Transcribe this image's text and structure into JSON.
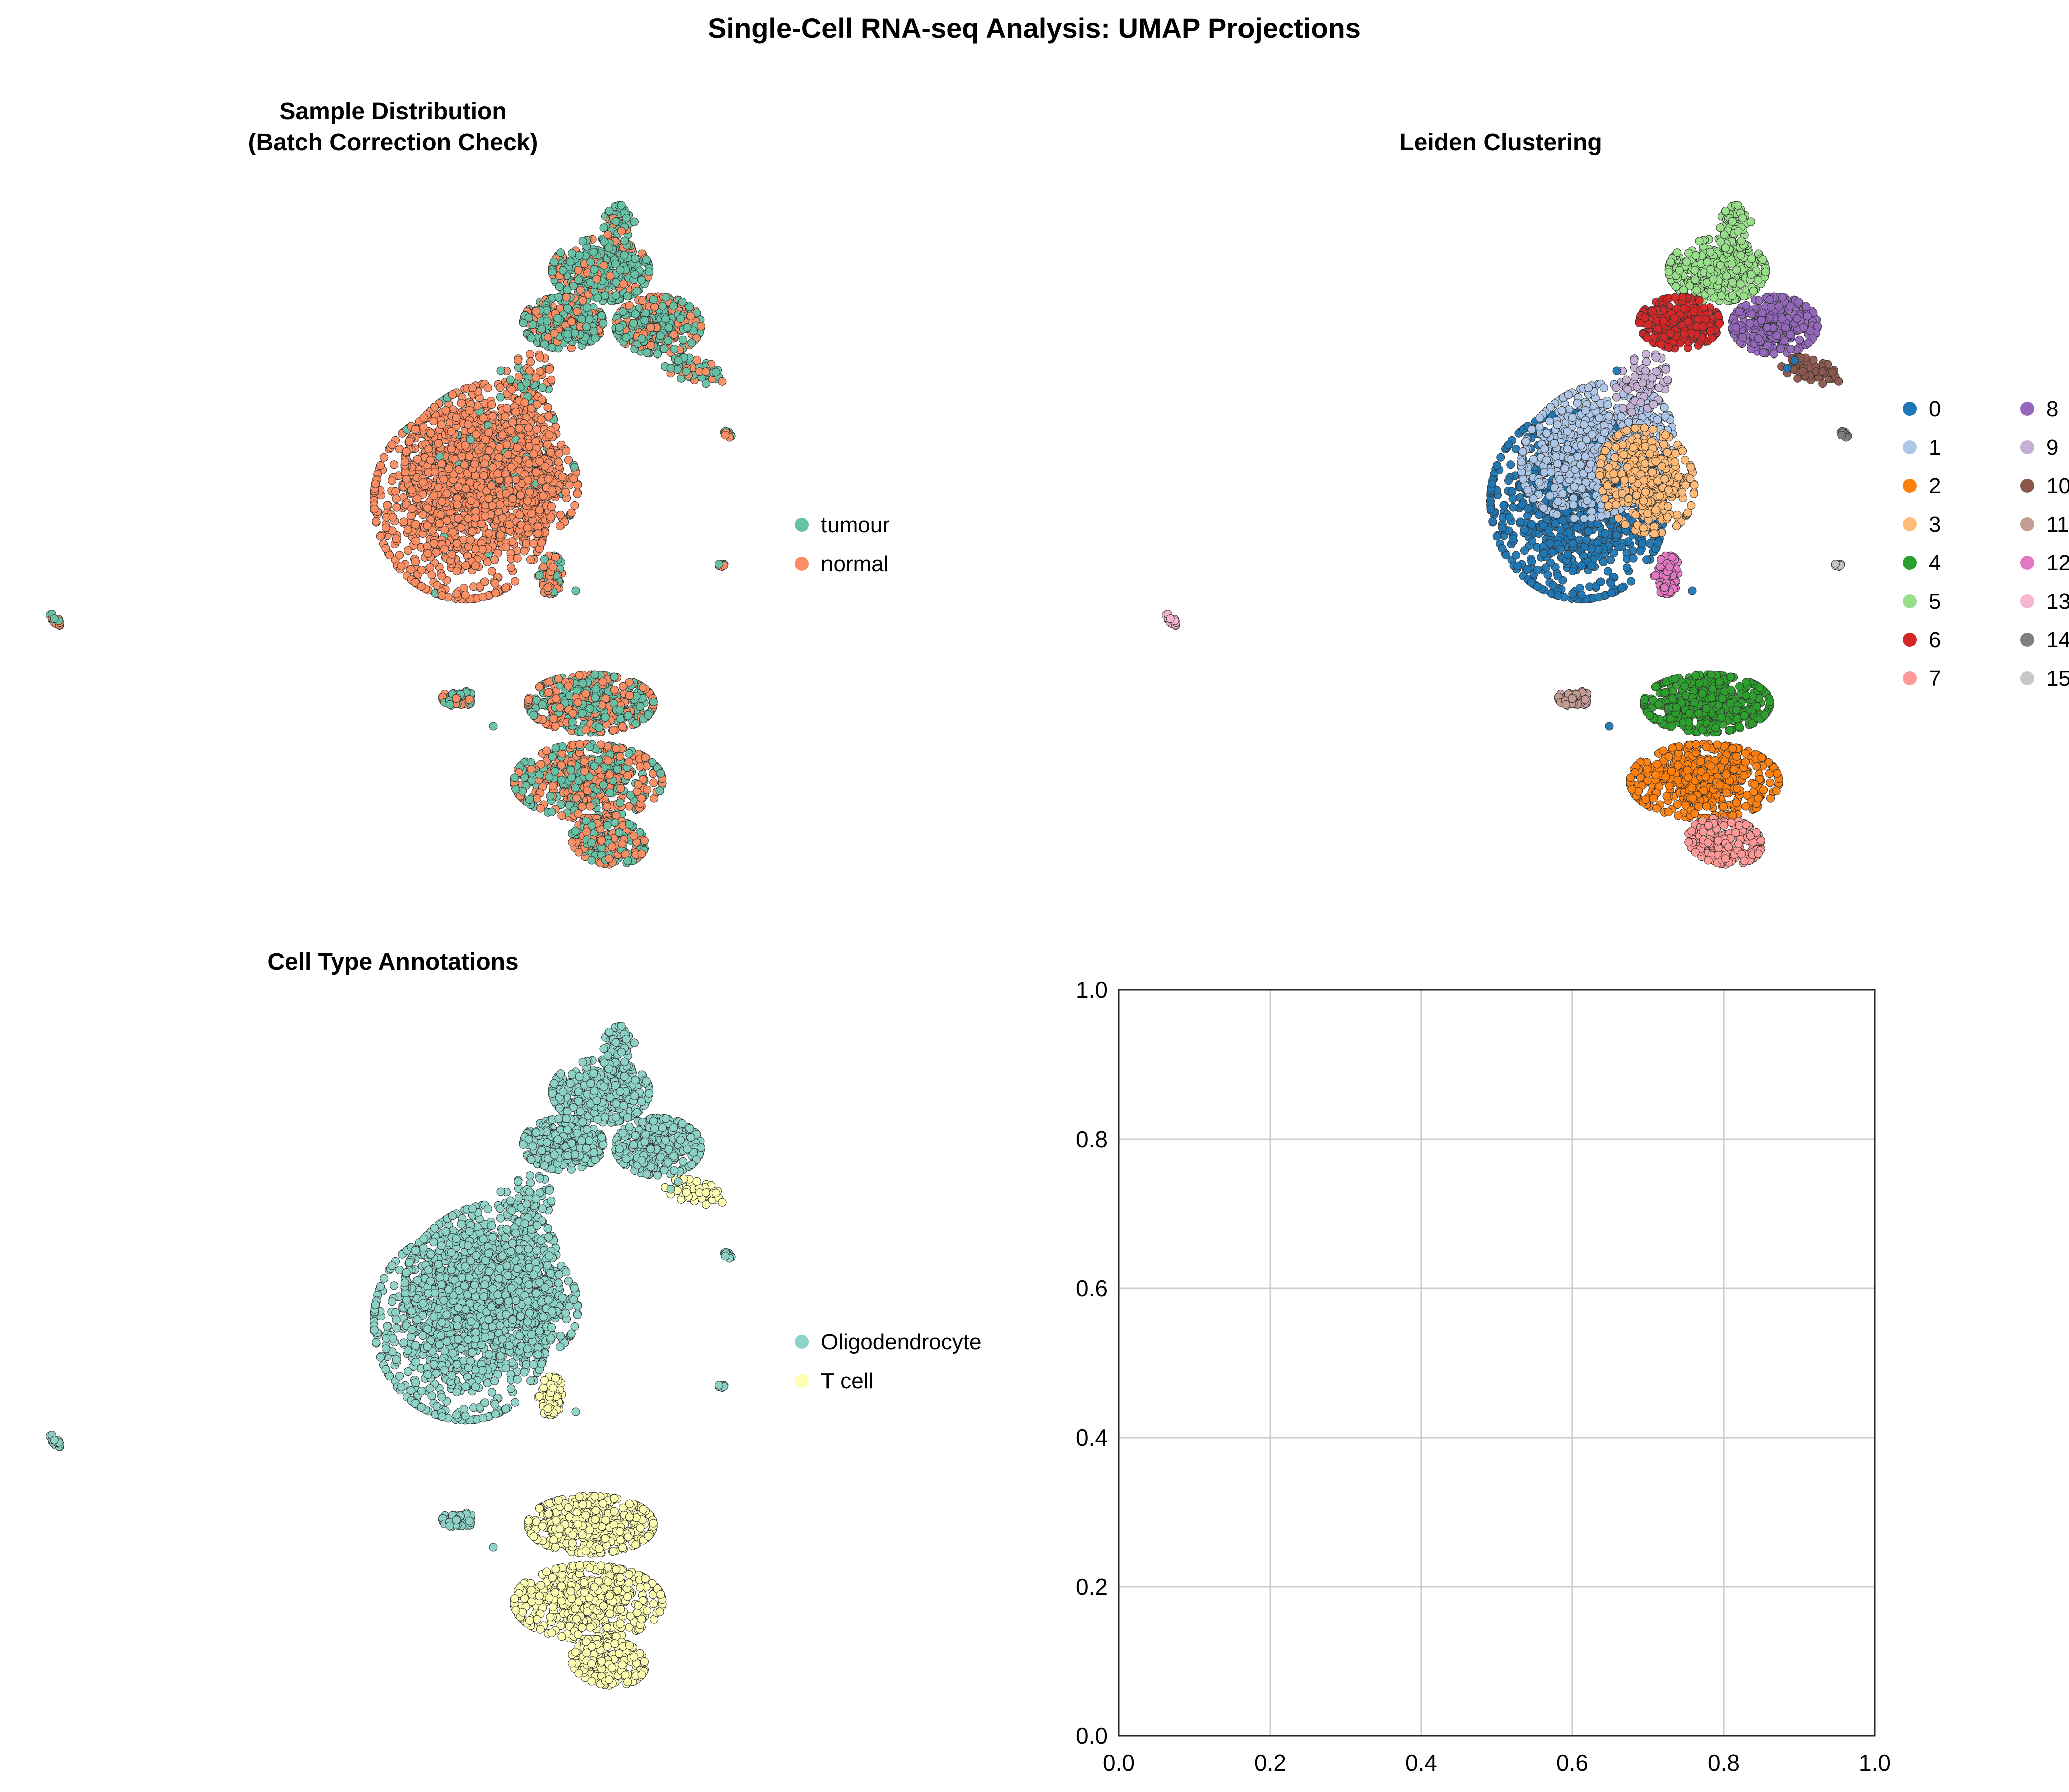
{
  "figure": {
    "title": "Single-Cell RNA-seq Analysis: UMAP Projections"
  },
  "chart_data": [
    {
      "type": "scatter",
      "panel": "top-left",
      "title": "Sample Distribution\n(Batch Correction Check)",
      "title_lines": [
        "Sample Distribution",
        "(Batch Correction Check)"
      ],
      "xlabel": "",
      "ylabel": "",
      "axes_visible": false,
      "grid": false,
      "legend_placement": "right",
      "legend": [
        {
          "label": "tumour",
          "color": "#66c2a5"
        },
        {
          "label": "normal",
          "color": "#fc8d62"
        }
      ],
      "coloring": "sample"
    },
    {
      "type": "scatter",
      "panel": "top-right",
      "title": "Leiden Clustering",
      "title_lines": [
        "Leiden Clustering"
      ],
      "xlabel": "",
      "ylabel": "",
      "axes_visible": false,
      "grid": false,
      "legend_placement": "right",
      "legend_columns": 2,
      "legend": [
        {
          "label": "0",
          "color": "#1f77b4"
        },
        {
          "label": "1",
          "color": "#aec7e8"
        },
        {
          "label": "2",
          "color": "#ff7f0e"
        },
        {
          "label": "3",
          "color": "#ffbb78"
        },
        {
          "label": "4",
          "color": "#2ca02c"
        },
        {
          "label": "5",
          "color": "#98df8a"
        },
        {
          "label": "6",
          "color": "#d62728"
        },
        {
          "label": "7",
          "color": "#ff9896"
        },
        {
          "label": "8",
          "color": "#9467bd"
        },
        {
          "label": "9",
          "color": "#c5b0d5"
        },
        {
          "label": "10",
          "color": "#8c564b"
        },
        {
          "label": "11",
          "color": "#c49c94"
        },
        {
          "label": "12",
          "color": "#e377c2"
        },
        {
          "label": "13",
          "color": "#f7b6d2"
        },
        {
          "label": "14",
          "color": "#7f7f7f"
        },
        {
          "label": "15",
          "color": "#c7c7c7"
        }
      ],
      "coloring": "cluster"
    },
    {
      "type": "scatter",
      "panel": "bottom-left",
      "title": "Cell Type Annotations",
      "title_lines": [
        "Cell Type Annotations"
      ],
      "xlabel": "",
      "ylabel": "",
      "axes_visible": false,
      "grid": false,
      "legend_placement": "right",
      "legend": [
        {
          "label": "Oligodendrocyte",
          "color": "#8dd3c7"
        },
        {
          "label": "T cell",
          "color": "#ffffb3"
        }
      ],
      "coloring": "celltype"
    },
    {
      "type": "scatter",
      "panel": "bottom-right",
      "title": "",
      "xlabel": "",
      "ylabel": "",
      "axes_visible": true,
      "grid": true,
      "xlim": [
        0,
        1
      ],
      "ylim": [
        0,
        1
      ],
      "xticks": [
        "0.0",
        "0.2",
        "0.4",
        "0.6",
        "0.8",
        "1.0"
      ],
      "yticks": [
        "0.0",
        "0.2",
        "0.4",
        "0.6",
        "0.8",
        "1.0"
      ],
      "empty": true
    }
  ]
}
